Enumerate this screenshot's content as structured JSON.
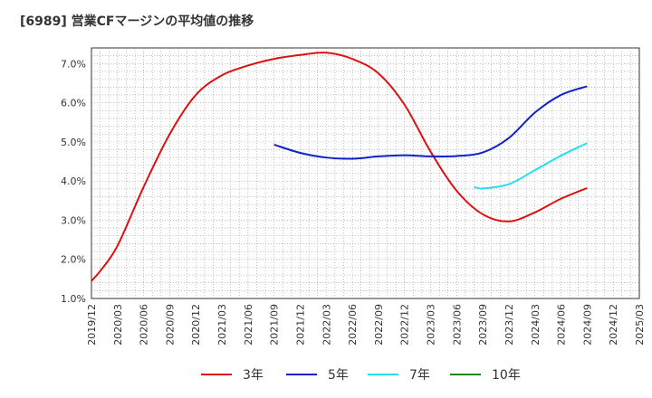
{
  "title": "[6989]  営業CFマージンの平均値の推移",
  "chart_data": {
    "type": "line",
    "title": "[6989]  営業CFマージンの平均値の推移",
    "xlabel": "",
    "ylabel": "",
    "ylim": [
      1.0,
      7.4
    ],
    "y_ticks": [
      "1.0%",
      "2.0%",
      "3.0%",
      "4.0%",
      "5.0%",
      "6.0%",
      "7.0%"
    ],
    "x_ticks": [
      "2019/12",
      "2020/03",
      "2020/06",
      "2020/09",
      "2020/12",
      "2021/03",
      "2021/06",
      "2021/09",
      "2021/12",
      "2022/03",
      "2022/06",
      "2022/09",
      "2022/12",
      "2023/03",
      "2023/06",
      "2023/09",
      "2023/12",
      "2024/03",
      "2024/06",
      "2024/09",
      "2024/12",
      "2025/03"
    ],
    "grid": true,
    "legend_position": "bottom",
    "series": [
      {
        "name": "3年",
        "color": "#dd1111",
        "x": [
          "2019/12",
          "2020/01",
          "2020/03",
          "2020/06",
          "2020/09",
          "2020/12",
          "2021/03",
          "2021/06",
          "2021/09",
          "2021/12",
          "2022/03",
          "2022/06",
          "2022/09",
          "2022/12",
          "2023/03",
          "2023/06",
          "2023/09",
          "2023/12",
          "2024/03",
          "2024/06",
          "2024/09"
        ],
        "values": [
          1.45,
          1.7,
          2.35,
          3.85,
          5.2,
          6.2,
          6.7,
          6.95,
          7.12,
          7.22,
          7.28,
          7.12,
          6.75,
          5.95,
          4.75,
          3.75,
          3.15,
          2.97,
          3.2,
          3.55,
          3.82
        ]
      },
      {
        "name": "5年",
        "color": "#1122cc",
        "x": [
          "2021/09",
          "2021/12",
          "2022/03",
          "2022/06",
          "2022/09",
          "2022/12",
          "2023/03",
          "2023/06",
          "2023/09",
          "2023/12",
          "2024/03",
          "2024/06",
          "2024/09"
        ],
        "values": [
          4.93,
          4.72,
          4.6,
          4.57,
          4.63,
          4.66,
          4.63,
          4.64,
          4.73,
          5.1,
          5.75,
          6.2,
          6.42
        ]
      },
      {
        "name": "7年",
        "color": "#22e0ee",
        "x": [
          "2023/08",
          "2023/09",
          "2023/12",
          "2024/03",
          "2024/06",
          "2024/09"
        ],
        "values": [
          3.85,
          3.81,
          3.92,
          4.28,
          4.65,
          4.97
        ]
      },
      {
        "name": "10年",
        "color": "#228822",
        "x": [],
        "values": []
      }
    ]
  }
}
